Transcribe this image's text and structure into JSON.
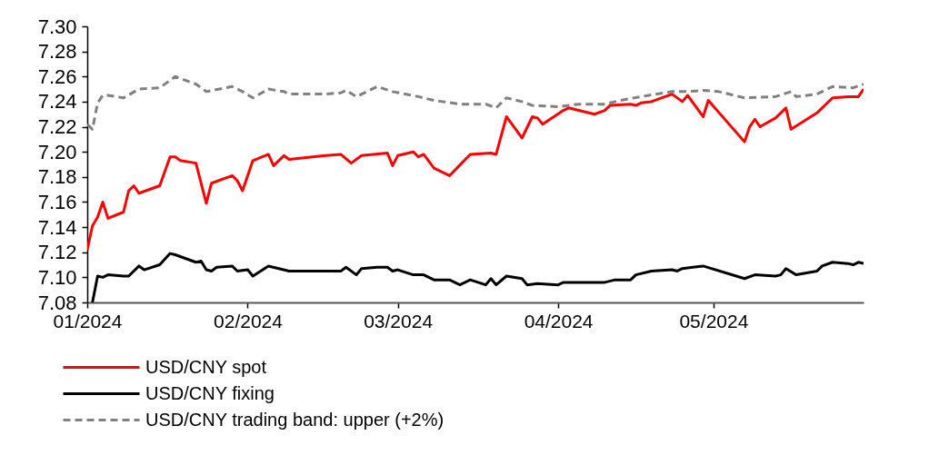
{
  "chart_data": {
    "type": "line",
    "xlim": [
      "2024-01-01",
      "2024-05-30"
    ],
    "xticks": [
      {
        "value": "2024-01-01",
        "label": "01/2024"
      },
      {
        "value": "2024-02-01",
        "label": "02/2024"
      },
      {
        "value": "2024-03-01",
        "label": "03/2024"
      },
      {
        "value": "2024-04-01",
        "label": "04/2024"
      },
      {
        "value": "2024-05-01",
        "label": "05/2024"
      }
    ],
    "ylim": [
      7.08,
      7.3
    ],
    "yticks": [
      {
        "value": 7.08,
        "label": "7.08"
      },
      {
        "value": 7.1,
        "label": "7.10"
      },
      {
        "value": 7.12,
        "label": "7.12"
      },
      {
        "value": 7.14,
        "label": "7.14"
      },
      {
        "value": 7.16,
        "label": "7.16"
      },
      {
        "value": 7.18,
        "label": "7.18"
      },
      {
        "value": 7.2,
        "label": "7.20"
      },
      {
        "value": 7.22,
        "label": "7.22"
      },
      {
        "value": 7.24,
        "label": "7.24"
      },
      {
        "value": 7.26,
        "label": "7.26"
      },
      {
        "value": 7.28,
        "label": "7.28"
      },
      {
        "value": 7.3,
        "label": "7.30"
      }
    ],
    "grid": false,
    "legend": "bottom",
    "series": [
      {
        "name": "USD/CNY spot",
        "color": "#ff0000",
        "line_style": "solid",
        "x": [
          "2024-01-01",
          "2024-01-02",
          "2024-01-03",
          "2024-01-04",
          "2024-01-05",
          "2024-01-08",
          "2024-01-09",
          "2024-01-10",
          "2024-01-11",
          "2024-01-15",
          "2024-01-17",
          "2024-01-18",
          "2024-01-19",
          "2024-01-22",
          "2024-01-24",
          "2024-01-25",
          "2024-01-29",
          "2024-01-30",
          "2024-01-31",
          "2024-02-02",
          "2024-02-05",
          "2024-02-06",
          "2024-02-08",
          "2024-02-09",
          "2024-02-16",
          "2024-02-19",
          "2024-02-21",
          "2024-02-23",
          "2024-02-28",
          "2024-02-29",
          "2024-03-01",
          "2024-03-04",
          "2024-03-05",
          "2024-03-06",
          "2024-03-08",
          "2024-03-11",
          "2024-03-15",
          "2024-03-19",
          "2024-03-20",
          "2024-03-22",
          "2024-03-25",
          "2024-03-27",
          "2024-03-28",
          "2024-03-29",
          "2024-04-02",
          "2024-04-03",
          "2024-04-08",
          "2024-04-10",
          "2024-04-11",
          "2024-04-15",
          "2024-04-16",
          "2024-04-17",
          "2024-04-19",
          "2024-04-23",
          "2024-04-25",
          "2024-04-26",
          "2024-04-29",
          "2024-04-30",
          "2024-05-07",
          "2024-05-08",
          "2024-05-09",
          "2024-05-10",
          "2024-05-13",
          "2024-05-15",
          "2024-05-16",
          "2024-05-21",
          "2024-05-24",
          "2024-05-27",
          "2024-05-29",
          "2024-05-30"
        ],
        "values": [
          7.122,
          7.141,
          7.148,
          7.16,
          7.147,
          7.152,
          7.169,
          7.173,
          7.167,
          7.173,
          7.196,
          7.196,
          7.193,
          7.191,
          7.159,
          7.175,
          7.181,
          7.177,
          7.169,
          7.193,
          7.198,
          7.189,
          7.197,
          7.194,
          7.197,
          7.198,
          7.191,
          7.197,
          7.199,
          7.189,
          7.197,
          7.2,
          7.196,
          7.198,
          7.187,
          7.181,
          7.198,
          7.199,
          7.198,
          7.228,
          7.211,
          7.228,
          7.227,
          7.222,
          7.233,
          7.235,
          7.23,
          7.233,
          7.237,
          7.238,
          7.237,
          7.239,
          7.24,
          7.246,
          7.24,
          7.245,
          7.228,
          7.241,
          7.208,
          7.22,
          7.226,
          7.22,
          7.227,
          7.235,
          7.218,
          7.231,
          7.243,
          7.244,
          7.244,
          7.25
        ]
      },
      {
        "name": "USD/CNY fixing",
        "color": "#000000",
        "line_style": "solid",
        "x": [
          "2024-01-02",
          "2024-01-03",
          "2024-01-04",
          "2024-01-05",
          "2024-01-08",
          "2024-01-09",
          "2024-01-11",
          "2024-01-12",
          "2024-01-15",
          "2024-01-17",
          "2024-01-18",
          "2024-01-22",
          "2024-01-23",
          "2024-01-24",
          "2024-01-25",
          "2024-01-26",
          "2024-01-29",
          "2024-01-30",
          "2024-02-01",
          "2024-02-02",
          "2024-02-05",
          "2024-02-07",
          "2024-02-09",
          "2024-02-16",
          "2024-02-19",
          "2024-02-20",
          "2024-02-22",
          "2024-02-23",
          "2024-02-26",
          "2024-02-28",
          "2024-02-29",
          "2024-03-01",
          "2024-03-04",
          "2024-03-06",
          "2024-03-08",
          "2024-03-11",
          "2024-03-13",
          "2024-03-15",
          "2024-03-18",
          "2024-03-19",
          "2024-03-20",
          "2024-03-22",
          "2024-03-25",
          "2024-03-26",
          "2024-03-28",
          "2024-04-01",
          "2024-04-02",
          "2024-04-10",
          "2024-04-12",
          "2024-04-15",
          "2024-04-16",
          "2024-04-19",
          "2024-04-23",
          "2024-04-24",
          "2024-04-25",
          "2024-04-29",
          "2024-05-07",
          "2024-05-09",
          "2024-05-13",
          "2024-05-14",
          "2024-05-15",
          "2024-05-17",
          "2024-05-21",
          "2024-05-22",
          "2024-05-24",
          "2024-05-27",
          "2024-05-28",
          "2024-05-29",
          "2024-05-30"
        ],
        "values": [
          7.08,
          7.101,
          7.1,
          7.102,
          7.101,
          7.101,
          7.109,
          7.106,
          7.11,
          7.119,
          7.118,
          7.112,
          7.113,
          7.106,
          7.105,
          7.108,
          7.109,
          7.105,
          7.106,
          7.101,
          7.109,
          7.107,
          7.105,
          7.105,
          7.105,
          7.108,
          7.102,
          7.107,
          7.108,
          7.108,
          7.105,
          7.106,
          7.102,
          7.102,
          7.098,
          7.098,
          7.094,
          7.098,
          7.094,
          7.099,
          7.094,
          7.101,
          7.099,
          7.094,
          7.095,
          7.094,
          7.096,
          7.096,
          7.098,
          7.098,
          7.102,
          7.105,
          7.106,
          7.105,
          7.107,
          7.109,
          7.099,
          7.102,
          7.101,
          7.102,
          7.107,
          7.102,
          7.105,
          7.109,
          7.112,
          7.111,
          7.11,
          7.112,
          7.111
        ]
      },
      {
        "name": "USD/CNY trading band: upper (+2%)",
        "color": "#808080",
        "line_style": "dashed",
        "x": [
          "2024-01-01",
          "2024-01-02",
          "2024-01-03",
          "2024-01-04",
          "2024-01-05",
          "2024-01-08",
          "2024-01-11",
          "2024-01-15",
          "2024-01-18",
          "2024-01-22",
          "2024-01-24",
          "2024-01-29",
          "2024-01-31",
          "2024-02-02",
          "2024-02-05",
          "2024-02-08",
          "2024-02-09",
          "2024-02-16",
          "2024-02-19",
          "2024-02-20",
          "2024-02-22",
          "2024-02-26",
          "2024-02-29",
          "2024-03-05",
          "2024-03-08",
          "2024-03-13",
          "2024-03-18",
          "2024-03-20",
          "2024-03-22",
          "2024-03-25",
          "2024-03-27",
          "2024-04-01",
          "2024-04-05",
          "2024-04-10",
          "2024-04-13",
          "2024-04-17",
          "2024-04-23",
          "2024-04-26",
          "2024-04-29",
          "2024-05-02",
          "2024-05-07",
          "2024-05-13",
          "2024-05-16",
          "2024-05-17",
          "2024-05-21",
          "2024-05-24",
          "2024-05-28",
          "2024-05-30"
        ],
        "values": [
          7.222,
          7.218,
          7.239,
          7.245,
          7.245,
          7.243,
          7.25,
          7.251,
          7.26,
          7.254,
          7.248,
          7.252,
          7.248,
          7.243,
          7.25,
          7.248,
          7.246,
          7.246,
          7.247,
          7.249,
          7.244,
          7.252,
          7.248,
          7.244,
          7.241,
          7.238,
          7.238,
          7.235,
          7.243,
          7.24,
          7.237,
          7.236,
          7.238,
          7.238,
          7.241,
          7.244,
          7.248,
          7.248,
          7.249,
          7.248,
          7.243,
          7.244,
          7.248,
          7.244,
          7.246,
          7.252,
          7.251,
          7.254
        ]
      }
    ]
  }
}
